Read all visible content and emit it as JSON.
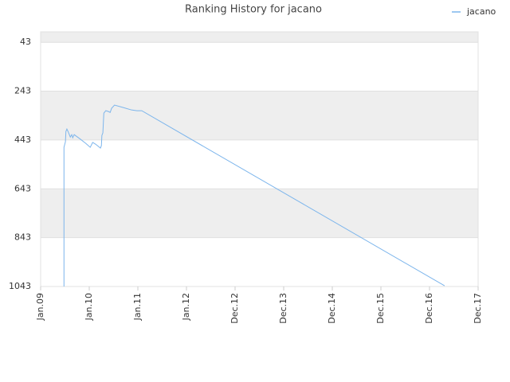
{
  "chart_data": {
    "type": "line",
    "title": "Ranking History for jacano",
    "x_is_index_of_ticks": true,
    "xlim": [
      0,
      9
    ],
    "xticks": [
      {
        "value": 0,
        "label": "Jan.09"
      },
      {
        "value": 1,
        "label": "Jan.10"
      },
      {
        "value": 2,
        "label": "Jan.11"
      },
      {
        "value": 3,
        "label": "Jan.12"
      },
      {
        "value": 4,
        "label": "Dec.12"
      },
      {
        "value": 5,
        "label": "Dec.13"
      },
      {
        "value": 6,
        "label": "Dec.14"
      },
      {
        "value": 7,
        "label": "Dec.15"
      },
      {
        "value": 8,
        "label": "Dec.16"
      },
      {
        "value": 9,
        "label": "Dec.17"
      }
    ],
    "ylim": [
      0,
      1043
    ],
    "y_inverted": true,
    "yticks": [
      43,
      243,
      443,
      643,
      843,
      1043
    ],
    "legend": "top-right",
    "x": [
      0.48,
      0.48,
      0.51,
      0.52,
      0.54,
      0.57,
      0.61,
      0.64,
      0.66,
      0.69,
      0.8,
      0.93,
      1.02,
      1.07,
      1.13,
      1.23,
      1.25,
      1.26,
      1.28,
      1.3,
      1.34,
      1.39,
      1.43,
      1.46,
      1.52,
      1.7,
      1.87,
      1.98,
      2.08,
      8.31
    ],
    "series": [
      {
        "name": "jacano",
        "color": "#7cb5ec",
        "values": [
          1043,
          473,
          450,
          408,
          398,
          411,
          431,
          421,
          434,
          421,
          437,
          457,
          473,
          453,
          460,
          476,
          466,
          424,
          414,
          333,
          323,
          326,
          330,
          313,
          300,
          310,
          320,
          323,
          323,
          1040
        ]
      }
    ]
  }
}
